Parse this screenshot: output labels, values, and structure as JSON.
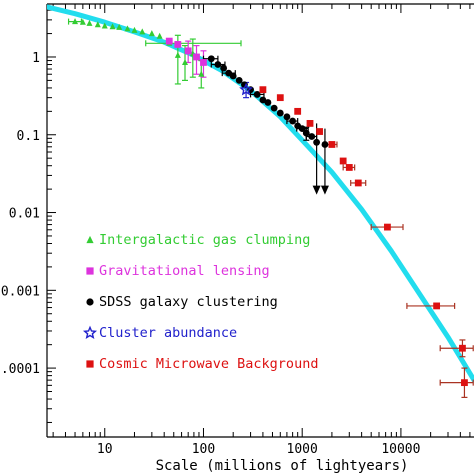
{
  "chart_data": {
    "type": "scatter",
    "title": "",
    "xlabel": "Scale (millions of lightyears)",
    "ylabel": "",
    "xscale": "log",
    "yscale": "log",
    "xlim": [
      2.6,
      55000
    ],
    "ylim": [
      1.3e-05,
      4.8
    ],
    "grid": false,
    "legend_position": "lower-left",
    "x_ticks": [
      {
        "value": 10,
        "label": "10"
      },
      {
        "value": 100,
        "label": "100"
      },
      {
        "value": 1000,
        "label": "1000"
      },
      {
        "value": 10000,
        "label": "10000"
      }
    ],
    "y_ticks": [
      {
        "value": 1,
        "label": "1"
      },
      {
        "value": 0.1,
        "label": "0.1"
      },
      {
        "value": 0.01,
        "label": "0.01"
      },
      {
        "value": 0.001,
        "label": "0.001"
      },
      {
        "value": 0.0001,
        "label": "0.0001"
      }
    ],
    "curve": {
      "color": "#22ddee",
      "points": [
        [
          2.6,
          4.4
        ],
        [
          5,
          3.6
        ],
        [
          10,
          2.8
        ],
        [
          20,
          2.1
        ],
        [
          40,
          1.55
        ],
        [
          80,
          1.05
        ],
        [
          150,
          0.68
        ],
        [
          300,
          0.37
        ],
        [
          600,
          0.17
        ],
        [
          1000,
          0.085
        ],
        [
          2000,
          0.033
        ],
        [
          4000,
          0.011
        ],
        [
          8000,
          0.0032
        ],
        [
          15000,
          0.00095
        ],
        [
          30000,
          0.00025
        ],
        [
          55000,
          7e-05
        ]
      ]
    },
    "series": [
      {
        "name": "Intergalactic gas clumping",
        "color": "#33cc33",
        "marker": "triangle",
        "points": [
          {
            "x": 5,
            "y": 2.85,
            "xerr": [
              4.3,
              5.8
            ]
          },
          {
            "x": 6,
            "y": 2.8
          },
          {
            "x": 7,
            "y": 2.7
          },
          {
            "x": 8.5,
            "y": 2.6
          },
          {
            "x": 10,
            "y": 2.5
          },
          {
            "x": 12,
            "y": 2.45
          },
          {
            "x": 14,
            "y": 2.4
          },
          {
            "x": 17,
            "y": 2.3
          },
          {
            "x": 20,
            "y": 2.2
          },
          {
            "x": 24,
            "y": 2.1
          },
          {
            "x": 30,
            "y": 2.0
          },
          {
            "x": 36,
            "y": 1.85
          },
          {
            "x": 45,
            "y": 1.5,
            "xerr": [
              26,
              240
            ]
          },
          {
            "x": 55,
            "y": 1.05,
            "yerr": [
              0.45,
              1.9
            ]
          },
          {
            "x": 65,
            "y": 0.85,
            "yerr": [
              0.5,
              1.4
            ]
          },
          {
            "x": 78,
            "y": 1.1,
            "yerr": [
              0.55,
              1.7
            ]
          },
          {
            "x": 95,
            "y": 0.6,
            "yerr": [
              0.4,
              0.9
            ]
          }
        ]
      },
      {
        "name": "Gravitational lensing",
        "color": "#dd33dd",
        "marker": "square",
        "points": [
          {
            "x": 45,
            "y": 1.6
          },
          {
            "x": 55,
            "y": 1.45
          },
          {
            "x": 70,
            "y": 1.2,
            "yerr": [
              0.85,
              1.6
            ]
          },
          {
            "x": 85,
            "y": 1.0,
            "yerr": [
              0.6,
              1.4
            ]
          },
          {
            "x": 100,
            "y": 0.85,
            "yerr": [
              0.55,
              1.2
            ]
          }
        ]
      },
      {
        "name": "SDSS galaxy clustering",
        "color": "#000000",
        "marker": "circle",
        "points": [
          {
            "x": 120,
            "y": 0.95,
            "xerr": [
              100,
              140
            ]
          },
          {
            "x": 140,
            "y": 0.8,
            "xerr": [
              120,
              165
            ]
          },
          {
            "x": 160,
            "y": 0.72
          },
          {
            "x": 180,
            "y": 0.62,
            "xerr": [
              155,
              210
            ]
          },
          {
            "x": 200,
            "y": 0.57
          },
          {
            "x": 230,
            "y": 0.5
          },
          {
            "x": 260,
            "y": 0.44
          },
          {
            "x": 300,
            "y": 0.38
          },
          {
            "x": 350,
            "y": 0.33,
            "xerr": [
              300,
              410
            ]
          },
          {
            "x": 400,
            "y": 0.28
          },
          {
            "x": 450,
            "y": 0.26
          },
          {
            "x": 520,
            "y": 0.22
          },
          {
            "x": 600,
            "y": 0.19
          },
          {
            "x": 700,
            "y": 0.17
          },
          {
            "x": 800,
            "y": 0.15,
            "xerr": [
              700,
              900
            ]
          },
          {
            "x": 900,
            "y": 0.13
          },
          {
            "x": 1000,
            "y": 0.12,
            "xerr": [
              880,
              1150
            ]
          },
          {
            "x": 1100,
            "y": 0.105,
            "yerr": [
              0.085,
              0.125
            ]
          },
          {
            "x": 1250,
            "y": 0.095,
            "xerr": [
              1100,
              1400
            ]
          },
          {
            "x": 1400,
            "y": 0.08,
            "yerr": [
              0.018,
              0.14
            ],
            "upper_limit": true
          },
          {
            "x": 1700,
            "y": 0.075,
            "yerr": [
              0.018,
              0.12
            ],
            "upper_limit": true
          }
        ]
      },
      {
        "name": "Cluster abundance",
        "color": "#2222cc",
        "marker": "star",
        "points": [
          {
            "x": 270,
            "y": 0.38,
            "yerr": [
              0.3,
              0.47
            ]
          }
        ]
      },
      {
        "name": "Cosmic Microwave Background",
        "color": "#dd1111",
        "marker": "square",
        "points": [
          {
            "x": 400,
            "y": 0.38
          },
          {
            "x": 600,
            "y": 0.3
          },
          {
            "x": 900,
            "y": 0.2
          },
          {
            "x": 1200,
            "y": 0.14
          },
          {
            "x": 1500,
            "y": 0.11
          },
          {
            "x": 2000,
            "y": 0.075,
            "xerr": [
              1750,
              2250
            ]
          },
          {
            "x": 2600,
            "y": 0.046
          },
          {
            "x": 3000,
            "y": 0.038,
            "xerr": [
              2600,
              3400
            ]
          },
          {
            "x": 3700,
            "y": 0.024,
            "xerr": [
              3100,
              4400
            ]
          },
          {
            "x": 7300,
            "y": 0.0065,
            "xerr": [
              5000,
              10500
            ]
          },
          {
            "x": 23000,
            "y": 0.00063,
            "xerr": [
              11500,
              35000
            ]
          },
          {
            "x": 42000,
            "y": 0.00018,
            "xerr": [
              25000,
              54000
            ],
            "yerr": [
              0.00014,
              0.00023
            ]
          },
          {
            "x": 44000,
            "y": 6.5e-05,
            "xerr": [
              25000,
              54000
            ],
            "yerr": [
              4.2e-05,
              0.0001
            ]
          }
        ]
      }
    ]
  }
}
